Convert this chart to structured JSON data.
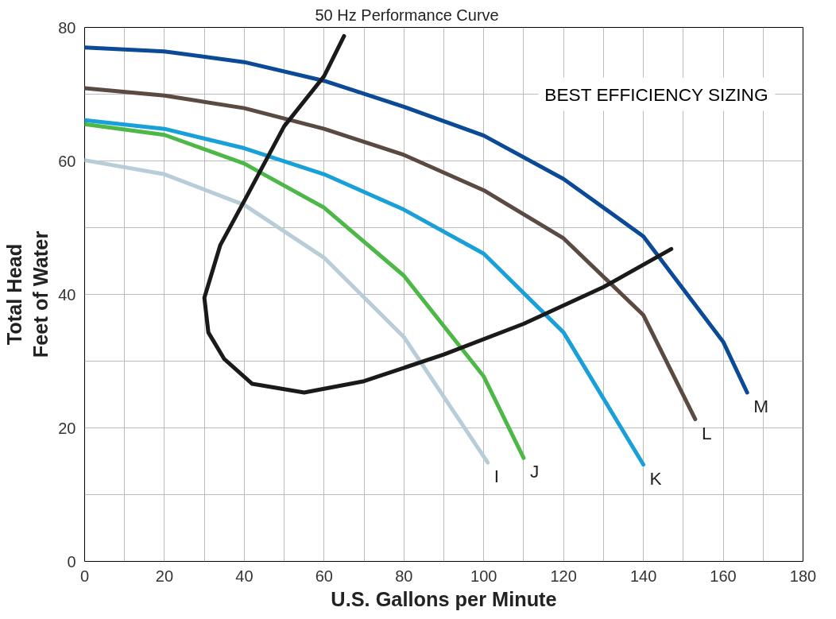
{
  "chart_data": {
    "type": "line",
    "xlabel": "U.S. Gallons per Minute",
    "ylabel": "Total Head\nFeet of Water",
    "xlim": [
      0,
      180
    ],
    "ylim": [
      0,
      80
    ],
    "xticks": [
      0,
      {
        "value": 10,
        "label": null
      },
      20,
      {
        "value": 30,
        "label": null
      },
      40,
      {
        "value": 50,
        "label": null
      },
      60,
      {
        "value": 70,
        "label": null
      },
      80,
      {
        "value": 90,
        "label": null
      },
      100,
      {
        "value": 110,
        "label": null
      },
      120,
      {
        "value": 130,
        "label": null
      },
      140,
      {
        "value": 150,
        "label": null
      },
      160,
      {
        "value": 170,
        "label": null
      },
      180
    ],
    "yticks": [
      0,
      {
        "value": 10,
        "label": null
      },
      20,
      {
        "value": 30,
        "label": null
      },
      40,
      {
        "value": 50,
        "label": null
      },
      60,
      {
        "value": 70,
        "label": null
      },
      80
    ],
    "grid": true,
    "marker": "none",
    "line_style": "solid",
    "annotations": [
      "BEST EFFICIENCY SIZING"
    ],
    "series": [
      {
        "name": "M",
        "color": "#0a4a96",
        "x": [
          0,
          20,
          40,
          60,
          80,
          100,
          120,
          140,
          160,
          166
        ],
        "values": [
          77,
          76.4,
          74.8,
          72,
          68.1,
          63.8,
          57.3,
          48.7,
          32.9,
          25.3
        ]
      },
      {
        "name": "L",
        "color": "#5a4a42",
        "x": [
          0,
          20,
          40,
          60,
          80,
          100,
          120,
          140,
          153
        ],
        "values": [
          70.9,
          69.8,
          67.9,
          64.8,
          60.9,
          55.6,
          48.4,
          36.9,
          21.3
        ]
      },
      {
        "name": "K",
        "color": "#1aa0d8",
        "x": [
          0,
          20,
          40,
          60,
          80,
          100,
          120,
          140
        ],
        "values": [
          66.1,
          64.8,
          61.9,
          58,
          52.7,
          46.1,
          34.3,
          14.5
        ]
      },
      {
        "name": "J",
        "color": "#4db848",
        "x": [
          0,
          20,
          40,
          60,
          80,
          100,
          110
        ],
        "values": [
          65.5,
          63.9,
          59.6,
          53,
          42.8,
          27.7,
          15.5
        ]
      },
      {
        "name": "I",
        "color": "#b8cdd8",
        "x": [
          0,
          20,
          40,
          60,
          80,
          101
        ],
        "values": [
          60.1,
          58,
          53.4,
          45.5,
          33.6,
          14.8
        ]
      },
      {
        "name": "50 Hz Performance Curve",
        "color": "#1a1a1a",
        "x": [
          65,
          60,
          50,
          40,
          34,
          30,
          31,
          35,
          42,
          55,
          70,
          90,
          110,
          130,
          147
        ],
        "values": [
          78.7,
          72.7,
          65.2,
          54,
          47.4,
          39.5,
          34.3,
          30.3,
          26.6,
          25.3,
          27,
          31,
          35.6,
          41.1,
          46.8
        ]
      }
    ]
  }
}
